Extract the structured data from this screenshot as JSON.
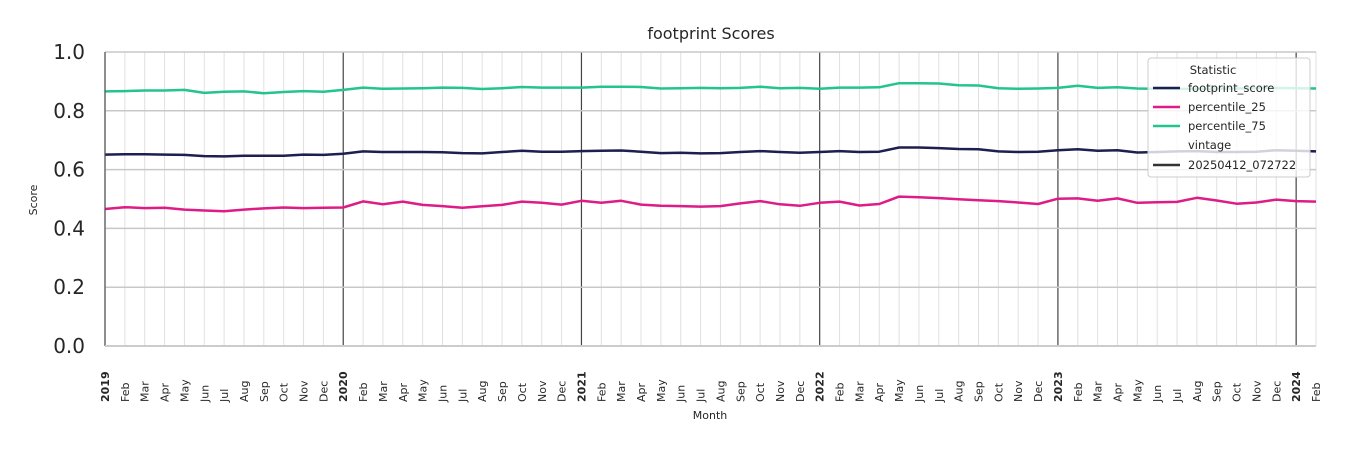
{
  "chart_data": {
    "type": "line",
    "title": "footprint Scores",
    "xlabel": "Month",
    "ylabel": "Score",
    "ylim": [
      0,
      1
    ],
    "yticks": [
      "0.0",
      "0.2",
      "0.4",
      "0.6",
      "0.8",
      "1.0"
    ],
    "grid": true,
    "x_start": "2019-01",
    "x_tick_labels": [
      "2019",
      "Feb",
      "Mar",
      "Apr",
      "May",
      "Jun",
      "Jul",
      "Aug",
      "Sep",
      "Oct",
      "Nov",
      "Dec",
      "2020",
      "Feb",
      "Mar",
      "Apr",
      "May",
      "Jun",
      "Jul",
      "Aug",
      "Sep",
      "Oct",
      "Nov",
      "Dec",
      "2021",
      "Feb",
      "Mar",
      "Apr",
      "May",
      "Jun",
      "Jul",
      "Aug",
      "Sep",
      "Oct",
      "Nov",
      "Dec",
      "2022",
      "Feb",
      "Mar",
      "Apr",
      "May",
      "Jun",
      "Jul",
      "Aug",
      "Sep",
      "Oct",
      "Nov",
      "Dec",
      "2023",
      "Feb",
      "Mar",
      "Apr",
      "May",
      "Jun",
      "Jul",
      "Aug",
      "Sep",
      "Oct",
      "Nov",
      "Dec",
      "2024",
      "Feb"
    ],
    "legend": {
      "placement": "top-right",
      "title": "Statistic",
      "subtitle": "vintage",
      "vintage_entry": "20250412_072722",
      "vintage_color": "#333333"
    },
    "series": [
      {
        "name": "footprint_score",
        "color": "#1c1f4f",
        "values": [
          0.651,
          0.652,
          0.652,
          0.651,
          0.65,
          0.646,
          0.645,
          0.647,
          0.647,
          0.647,
          0.651,
          0.65,
          0.654,
          0.662,
          0.66,
          0.66,
          0.66,
          0.659,
          0.656,
          0.655,
          0.66,
          0.664,
          0.661,
          0.661,
          0.663,
          0.664,
          0.665,
          0.661,
          0.656,
          0.657,
          0.655,
          0.656,
          0.66,
          0.663,
          0.66,
          0.657,
          0.66,
          0.663,
          0.66,
          0.661,
          0.675,
          0.675,
          0.673,
          0.67,
          0.669,
          0.662,
          0.66,
          0.661,
          0.666,
          0.669,
          0.664,
          0.666,
          0.658,
          0.66,
          0.662,
          0.663,
          0.66,
          0.66,
          0.661,
          0.666,
          0.664,
          0.662
        ]
      },
      {
        "name": "percentile_25",
        "color": "#dd1c87",
        "values": [
          0.466,
          0.472,
          0.469,
          0.47,
          0.464,
          0.461,
          0.458,
          0.464,
          0.468,
          0.471,
          0.469,
          0.47,
          0.471,
          0.492,
          0.482,
          0.491,
          0.48,
          0.476,
          0.47,
          0.475,
          0.48,
          0.491,
          0.487,
          0.481,
          0.494,
          0.487,
          0.494,
          0.481,
          0.477,
          0.476,
          0.474,
          0.476,
          0.485,
          0.493,
          0.482,
          0.477,
          0.487,
          0.491,
          0.478,
          0.483,
          0.508,
          0.506,
          0.503,
          0.499,
          0.496,
          0.493,
          0.488,
          0.483,
          0.501,
          0.502,
          0.494,
          0.502,
          0.487,
          0.489,
          0.49,
          0.504,
          0.495,
          0.484,
          0.488,
          0.498,
          0.493,
          0.491
        ]
      },
      {
        "name": "percentile_75",
        "color": "#23c48e",
        "values": [
          0.866,
          0.867,
          0.869,
          0.869,
          0.871,
          0.861,
          0.865,
          0.866,
          0.86,
          0.864,
          0.867,
          0.865,
          0.871,
          0.879,
          0.875,
          0.876,
          0.877,
          0.879,
          0.878,
          0.874,
          0.877,
          0.881,
          0.879,
          0.879,
          0.879,
          0.882,
          0.882,
          0.881,
          0.876,
          0.877,
          0.878,
          0.877,
          0.878,
          0.882,
          0.877,
          0.878,
          0.875,
          0.879,
          0.879,
          0.88,
          0.894,
          0.894,
          0.893,
          0.887,
          0.886,
          0.877,
          0.875,
          0.876,
          0.878,
          0.885,
          0.878,
          0.88,
          0.876,
          0.875,
          0.874,
          0.875,
          0.875,
          0.876,
          0.877,
          0.878,
          0.877,
          0.876
        ]
      }
    ]
  }
}
